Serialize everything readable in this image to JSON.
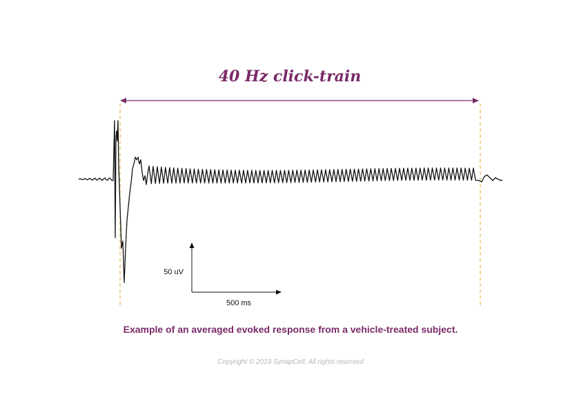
{
  "chart_data": {
    "type": "line",
    "title": "",
    "xlabel": "",
    "ylabel": "",
    "stimulus": {
      "label": "40 Hz click-train",
      "frequency_hz": 40,
      "duration_ms": 2000
    },
    "scale_bar": {
      "x_label": "500 ms",
      "y_label": "50 uV",
      "x_ms": 500,
      "y_uv": 50
    },
    "series": [
      {
        "description_kind": "averaged evoked response (EEG)",
        "waveform": {
          "pre_stimulus_ms": 250,
          "post_stimulus_ms": 150,
          "onset_peak_uv": 42,
          "onset_trough_uv": -68,
          "steady_state_peak_to_peak_uv": 8,
          "steady_state_cycles": 80
        }
      }
    ],
    "grid": false,
    "legend": "none"
  },
  "labels": {
    "stimulus_title": "40 Hz click-train",
    "scale_y": "50 uV",
    "scale_x": "500 ms"
  },
  "caption": "Example of an averaged evoked response from a vehicle-treated subject.",
  "copyright": "Copyright © 2019 SynapCell, All rights reserved",
  "colors": {
    "accent": "#7a2a69",
    "trace": "#111111",
    "marker": "#e8b84a",
    "muted": "#b5b5b5"
  }
}
